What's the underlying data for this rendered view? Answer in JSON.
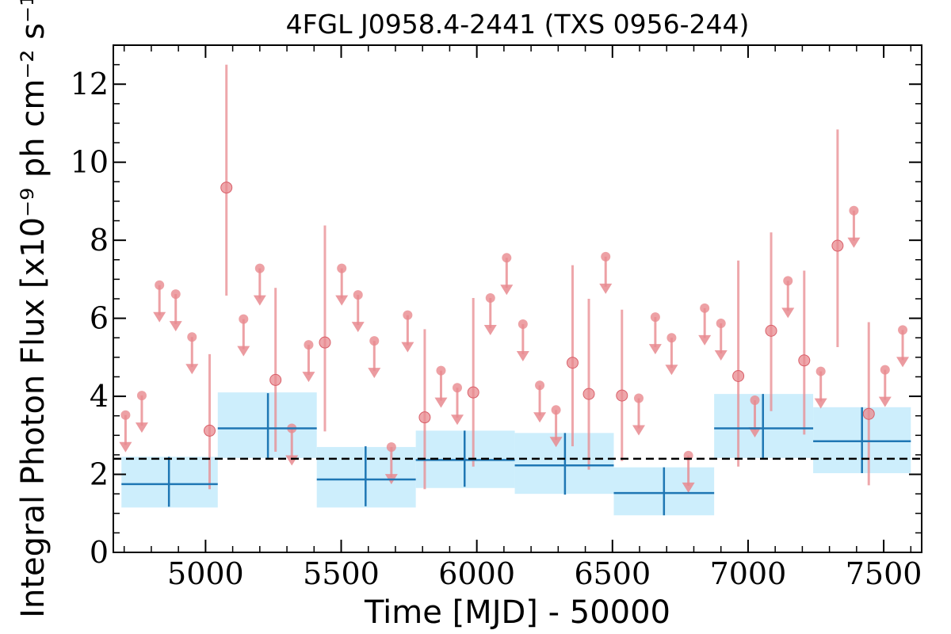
{
  "chart_data": {
    "type": "scatter",
    "title": "4FGL J0958.4-2441 (TXS 0956-244)",
    "xlabel": "Time [MJD] - 50000",
    "ylabel": "Integral Photon Flux [x10⁻⁹ ph cm⁻² s⁻¹]",
    "xlim": [
      4660,
      7640
    ],
    "ylim": [
      0,
      13
    ],
    "xticks": [
      5000,
      5500,
      6000,
      6500,
      7000,
      7500
    ],
    "yticks": [
      0,
      2,
      4,
      6,
      8,
      10,
      12
    ],
    "xtick_labels": [
      "5000",
      "5500",
      "6000",
      "6500",
      "7000",
      "7500"
    ],
    "ytick_labels": [
      "0",
      "2",
      "4",
      "6",
      "8",
      "10",
      "12"
    ],
    "grid": false,
    "mean_flux": 2.4,
    "colors": {
      "short_bins": "#e8898f",
      "long_bins": "#1f77b4",
      "long_band": "#cdeefc",
      "mean_line": "#000000"
    },
    "series": [
      {
        "role": "short_bins_detections",
        "points": [
          {
            "x": 5015,
            "y": 3.12,
            "ylo": 1.62,
            "yhi": 5.08
          },
          {
            "x": 5077,
            "y": 9.35,
            "ylo": 6.58,
            "yhi": 12.5
          },
          {
            "x": 5258,
            "y": 4.42,
            "ylo": 2.58,
            "yhi": 6.78
          },
          {
            "x": 5440,
            "y": 5.38,
            "ylo": 3.1,
            "yhi": 8.38
          },
          {
            "x": 5808,
            "y": 3.46,
            "ylo": 1.62,
            "yhi": 5.72
          },
          {
            "x": 5987,
            "y": 4.1,
            "ylo": 2.2,
            "yhi": 6.52
          },
          {
            "x": 6353,
            "y": 4.86,
            "ylo": 2.72,
            "yhi": 7.36
          },
          {
            "x": 6413,
            "y": 4.06,
            "ylo": 2.12,
            "yhi": 6.5
          },
          {
            "x": 6535,
            "y": 4.02,
            "ylo": 2.34,
            "yhi": 6.22
          },
          {
            "x": 6964,
            "y": 4.52,
            "ylo": 2.2,
            "yhi": 7.48
          },
          {
            "x": 7085,
            "y": 5.68,
            "ylo": 3.62,
            "yhi": 8.2
          },
          {
            "x": 7207,
            "y": 4.92,
            "ylo": 3.02,
            "yhi": 7.22
          },
          {
            "x": 7330,
            "y": 7.86,
            "ylo": 5.26,
            "yhi": 10.84
          },
          {
            "x": 7445,
            "y": 3.55,
            "ylo": 1.72,
            "yhi": 5.9
          }
        ]
      },
      {
        "role": "short_bins_upper_limits",
        "points": [
          {
            "x": 4705,
            "y": 3.52
          },
          {
            "x": 4765,
            "y": 4.02
          },
          {
            "x": 4830,
            "y": 6.85
          },
          {
            "x": 4890,
            "y": 6.62
          },
          {
            "x": 4950,
            "y": 5.52
          },
          {
            "x": 5140,
            "y": 5.98
          },
          {
            "x": 5200,
            "y": 7.28
          },
          {
            "x": 5318,
            "y": 3.18
          },
          {
            "x": 5380,
            "y": 5.32
          },
          {
            "x": 5502,
            "y": 7.28
          },
          {
            "x": 5562,
            "y": 6.6
          },
          {
            "x": 5622,
            "y": 5.42
          },
          {
            "x": 5685,
            "y": 2.7
          },
          {
            "x": 5745,
            "y": 6.08
          },
          {
            "x": 5868,
            "y": 4.66
          },
          {
            "x": 5928,
            "y": 4.22
          },
          {
            "x": 6050,
            "y": 6.52
          },
          {
            "x": 6110,
            "y": 7.55
          },
          {
            "x": 6170,
            "y": 5.85
          },
          {
            "x": 6232,
            "y": 4.28
          },
          {
            "x": 6292,
            "y": 3.65
          },
          {
            "x": 6475,
            "y": 7.58
          },
          {
            "x": 6597,
            "y": 3.95
          },
          {
            "x": 6658,
            "y": 6.03
          },
          {
            "x": 6718,
            "y": 5.5
          },
          {
            "x": 6780,
            "y": 2.48
          },
          {
            "x": 6840,
            "y": 6.26
          },
          {
            "x": 6900,
            "y": 5.87
          },
          {
            "x": 7025,
            "y": 3.9
          },
          {
            "x": 7147,
            "y": 6.96
          },
          {
            "x": 7268,
            "y": 4.64
          },
          {
            "x": 7390,
            "y": 8.76
          },
          {
            "x": 7505,
            "y": 4.68
          },
          {
            "x": 7570,
            "y": 5.7
          }
        ]
      },
      {
        "role": "long_bins",
        "points": [
          {
            "x": 4865,
            "xlo": 4690,
            "xhi": 5045,
            "y": 1.75,
            "ylo": 1.17,
            "yhi": 2.45,
            "band_lo": 1.15,
            "band_hi": 2.45
          },
          {
            "x": 5230,
            "xlo": 5045,
            "xhi": 5410,
            "y": 3.18,
            "ylo": 2.42,
            "yhi": 4.08,
            "band_lo": 2.42,
            "band_hi": 4.1
          },
          {
            "x": 5590,
            "xlo": 5410,
            "xhi": 5775,
            "y": 1.87,
            "ylo": 1.18,
            "yhi": 2.72,
            "band_lo": 1.15,
            "band_hi": 2.7
          },
          {
            "x": 5955,
            "xlo": 5775,
            "xhi": 6140,
            "y": 2.37,
            "ylo": 1.68,
            "yhi": 3.12,
            "band_lo": 1.65,
            "band_hi": 3.12
          },
          {
            "x": 6325,
            "xlo": 6140,
            "xhi": 6505,
            "y": 2.23,
            "ylo": 1.48,
            "yhi": 3.06,
            "band_lo": 1.5,
            "band_hi": 3.06
          },
          {
            "x": 6690,
            "xlo": 6505,
            "xhi": 6875,
            "y": 1.52,
            "ylo": 0.95,
            "yhi": 2.18,
            "band_lo": 0.95,
            "band_hi": 2.18
          },
          {
            "x": 7055,
            "xlo": 6875,
            "xhi": 7240,
            "y": 3.18,
            "ylo": 2.42,
            "yhi": 4.06,
            "band_lo": 2.42,
            "band_hi": 4.06
          },
          {
            "x": 7420,
            "xlo": 7240,
            "xhi": 7600,
            "y": 2.85,
            "ylo": 2.03,
            "yhi": 3.72,
            "band_lo": 2.03,
            "band_hi": 3.72
          }
        ]
      }
    ]
  }
}
